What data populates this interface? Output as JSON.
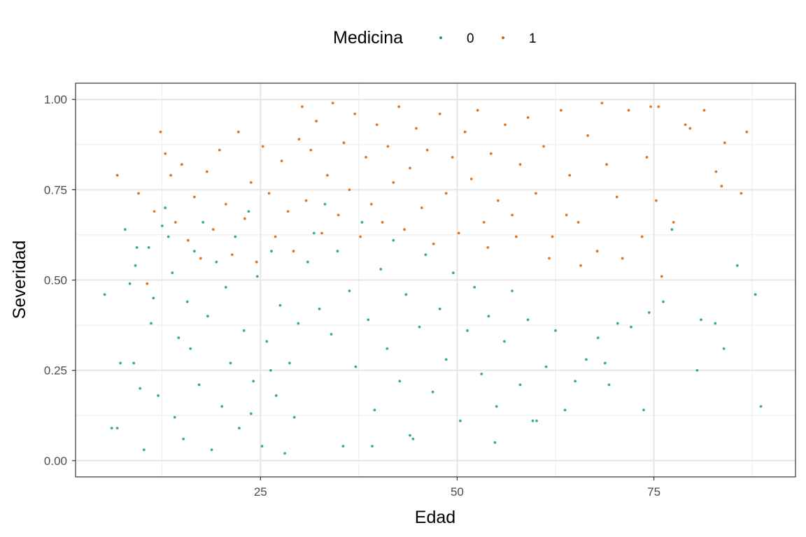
{
  "chart_data": {
    "type": "scatter",
    "title": "",
    "xlabel": "Edad",
    "ylabel": "Severidad",
    "xlim": [
      1.5,
      93.0
    ],
    "ylim": [
      -0.045,
      1.045
    ],
    "x_ticks": [
      25,
      50,
      75
    ],
    "x_tick_labels": [
      "25",
      "50",
      "75"
    ],
    "y_ticks": [
      0,
      0.25,
      0.5,
      0.75,
      1.0
    ],
    "y_tick_labels": [
      "0.00",
      "0.25",
      "0.50",
      "0.75",
      "1.00"
    ],
    "grid": true,
    "legend": {
      "title": "Medicina",
      "position": "top",
      "entries": [
        {
          "label": "0",
          "color": "#1b9e77"
        },
        {
          "label": "1",
          "color": "#d95f02"
        }
      ]
    },
    "series": [
      {
        "name": "0",
        "color": "#1b9e77",
        "points": [
          [
            5.2,
            0.46
          ],
          [
            6.1,
            0.09
          ],
          [
            6.8,
            0.09
          ],
          [
            7.2,
            0.27
          ],
          [
            7.8,
            0.64
          ],
          [
            8.4,
            0.49
          ],
          [
            8.9,
            0.27
          ],
          [
            9.1,
            0.54
          ],
          [
            9.3,
            0.59
          ],
          [
            9.7,
            0.2
          ],
          [
            10.2,
            0.03
          ],
          [
            10.8,
            0.59
          ],
          [
            11.1,
            0.38
          ],
          [
            11.4,
            0.45
          ],
          [
            12.0,
            0.18
          ],
          [
            12.5,
            0.65
          ],
          [
            12.9,
            0.7
          ],
          [
            13.3,
            0.62
          ],
          [
            13.8,
            0.52
          ],
          [
            14.1,
            0.12
          ],
          [
            14.6,
            0.34
          ],
          [
            15.2,
            0.06
          ],
          [
            15.7,
            0.44
          ],
          [
            16.1,
            0.31
          ],
          [
            16.6,
            0.58
          ],
          [
            17.2,
            0.21
          ],
          [
            17.7,
            0.66
          ],
          [
            18.3,
            0.4
          ],
          [
            18.8,
            0.03
          ],
          [
            19.4,
            0.55
          ],
          [
            20.1,
            0.15
          ],
          [
            20.6,
            0.48
          ],
          [
            21.2,
            0.27
          ],
          [
            21.8,
            0.62
          ],
          [
            22.3,
            0.09
          ],
          [
            22.9,
            0.36
          ],
          [
            23.5,
            0.69
          ],
          [
            24.1,
            0.22
          ],
          [
            24.6,
            0.51
          ],
          [
            25.2,
            0.04
          ],
          [
            25.8,
            0.33
          ],
          [
            26.4,
            0.58
          ],
          [
            27.0,
            0.18
          ],
          [
            27.5,
            0.43
          ],
          [
            28.1,
            0.02
          ],
          [
            28.7,
            0.27
          ],
          [
            29.3,
            0.12
          ],
          [
            29.8,
            0.38
          ],
          [
            26.3,
            0.25
          ],
          [
            23.8,
            0.13
          ],
          [
            31.0,
            0.55
          ],
          [
            31.8,
            0.63
          ],
          [
            32.5,
            0.42
          ],
          [
            33.2,
            0.71
          ],
          [
            34.0,
            0.35
          ],
          [
            34.8,
            0.58
          ],
          [
            35.5,
            0.04
          ],
          [
            36.3,
            0.47
          ],
          [
            37.1,
            0.26
          ],
          [
            37.9,
            0.66
          ],
          [
            38.7,
            0.39
          ],
          [
            39.5,
            0.14
          ],
          [
            40.3,
            0.53
          ],
          [
            41.1,
            0.31
          ],
          [
            41.9,
            0.61
          ],
          [
            42.7,
            0.22
          ],
          [
            43.5,
            0.46
          ],
          [
            44.4,
            0.06
          ],
          [
            45.2,
            0.37
          ],
          [
            46.0,
            0.57
          ],
          [
            46.9,
            0.19
          ],
          [
            47.8,
            0.42
          ],
          [
            48.6,
            0.28
          ],
          [
            49.5,
            0.52
          ],
          [
            50.4,
            0.11
          ],
          [
            51.3,
            0.36
          ],
          [
            52.2,
            0.48
          ],
          [
            53.1,
            0.24
          ],
          [
            54.0,
            0.4
          ],
          [
            55.0,
            0.15
          ],
          [
            56.0,
            0.33
          ],
          [
            57.0,
            0.47
          ],
          [
            58.0,
            0.21
          ],
          [
            59.0,
            0.39
          ],
          [
            60.1,
            0.11
          ],
          [
            61.3,
            0.26
          ],
          [
            62.5,
            0.36
          ],
          [
            63.7,
            0.14
          ],
          [
            65.0,
            0.22
          ],
          [
            66.4,
            0.28
          ],
          [
            67.9,
            0.34
          ],
          [
            69.3,
            0.21
          ],
          [
            70.4,
            0.38
          ],
          [
            72.1,
            0.37
          ],
          [
            74.4,
            0.41
          ],
          [
            76.2,
            0.44
          ],
          [
            77.3,
            0.64
          ],
          [
            80.5,
            0.25
          ],
          [
            82.8,
            0.38
          ],
          [
            83.9,
            0.31
          ],
          [
            85.6,
            0.54
          ],
          [
            87.9,
            0.46
          ],
          [
            88.6,
            0.15
          ],
          [
            81.0,
            0.39
          ],
          [
            68.8,
            0.27
          ],
          [
            73.7,
            0.14
          ],
          [
            59.6,
            0.11
          ],
          [
            54.8,
            0.05
          ],
          [
            44.0,
            0.07
          ],
          [
            39.2,
            0.04
          ]
        ]
      },
      {
        "name": "1",
        "color": "#d95f02",
        "points": [
          [
            6.8,
            0.79
          ],
          [
            9.5,
            0.74
          ],
          [
            10.6,
            0.49
          ],
          [
            11.5,
            0.69
          ],
          [
            12.3,
            0.91
          ],
          [
            12.9,
            0.85
          ],
          [
            13.6,
            0.79
          ],
          [
            14.2,
            0.66
          ],
          [
            15.0,
            0.82
          ],
          [
            15.8,
            0.61
          ],
          [
            16.6,
            0.73
          ],
          [
            17.4,
            0.56
          ],
          [
            18.2,
            0.8
          ],
          [
            19.0,
            0.64
          ],
          [
            19.8,
            0.86
          ],
          [
            20.6,
            0.71
          ],
          [
            21.4,
            0.57
          ],
          [
            22.2,
            0.91
          ],
          [
            23.0,
            0.67
          ],
          [
            23.8,
            0.77
          ],
          [
            24.5,
            0.55
          ],
          [
            25.3,
            0.87
          ],
          [
            26.1,
            0.74
          ],
          [
            26.9,
            0.62
          ],
          [
            27.7,
            0.83
          ],
          [
            28.5,
            0.69
          ],
          [
            29.2,
            0.58
          ],
          [
            29.9,
            0.89
          ],
          [
            30.3,
            0.98
          ],
          [
            30.8,
            0.72
          ],
          [
            31.4,
            0.86
          ],
          [
            32.1,
            0.94
          ],
          [
            32.8,
            0.63
          ],
          [
            33.5,
            0.79
          ],
          [
            34.2,
            0.99
          ],
          [
            34.9,
            0.68
          ],
          [
            35.6,
            0.88
          ],
          [
            36.3,
            0.75
          ],
          [
            37.0,
            0.96
          ],
          [
            37.7,
            0.62
          ],
          [
            38.4,
            0.84
          ],
          [
            39.1,
            0.71
          ],
          [
            39.8,
            0.93
          ],
          [
            40.5,
            0.66
          ],
          [
            41.2,
            0.87
          ],
          [
            41.9,
            0.77
          ],
          [
            42.6,
            0.98
          ],
          [
            43.3,
            0.64
          ],
          [
            44.0,
            0.81
          ],
          [
            44.8,
            0.92
          ],
          [
            45.5,
            0.7
          ],
          [
            46.2,
            0.86
          ],
          [
            47.0,
            0.6
          ],
          [
            47.8,
            0.96
          ],
          [
            48.6,
            0.74
          ],
          [
            49.4,
            0.84
          ],
          [
            50.2,
            0.63
          ],
          [
            51.0,
            0.91
          ],
          [
            51.8,
            0.78
          ],
          [
            52.6,
            0.97
          ],
          [
            53.4,
            0.66
          ],
          [
            54.3,
            0.85
          ],
          [
            55.2,
            0.72
          ],
          [
            56.1,
            0.93
          ],
          [
            57.0,
            0.68
          ],
          [
            58.0,
            0.82
          ],
          [
            59.0,
            0.95
          ],
          [
            60.0,
            0.74
          ],
          [
            61.0,
            0.87
          ],
          [
            62.1,
            0.62
          ],
          [
            63.2,
            0.97
          ],
          [
            64.3,
            0.79
          ],
          [
            65.4,
            0.66
          ],
          [
            66.6,
            0.9
          ],
          [
            67.8,
            0.58
          ],
          [
            69.0,
            0.82
          ],
          [
            70.3,
            0.73
          ],
          [
            71.8,
            0.97
          ],
          [
            73.5,
            0.62
          ],
          [
            74.1,
            0.84
          ],
          [
            75.3,
            0.72
          ],
          [
            76.0,
            0.51
          ],
          [
            77.5,
            0.66
          ],
          [
            79.6,
            0.92
          ],
          [
            81.4,
            0.97
          ],
          [
            82.9,
            0.8
          ],
          [
            83.6,
            0.76
          ],
          [
            84.0,
            0.88
          ],
          [
            86.1,
            0.74
          ],
          [
            86.8,
            0.91
          ],
          [
            74.6,
            0.98
          ],
          [
            68.4,
            0.99
          ],
          [
            65.7,
            0.54
          ],
          [
            61.7,
            0.56
          ],
          [
            57.5,
            0.62
          ],
          [
            53.9,
            0.59
          ],
          [
            71.0,
            0.56
          ],
          [
            63.9,
            0.68
          ],
          [
            79.0,
            0.93
          ],
          [
            75.6,
            0.98
          ]
        ]
      }
    ]
  }
}
